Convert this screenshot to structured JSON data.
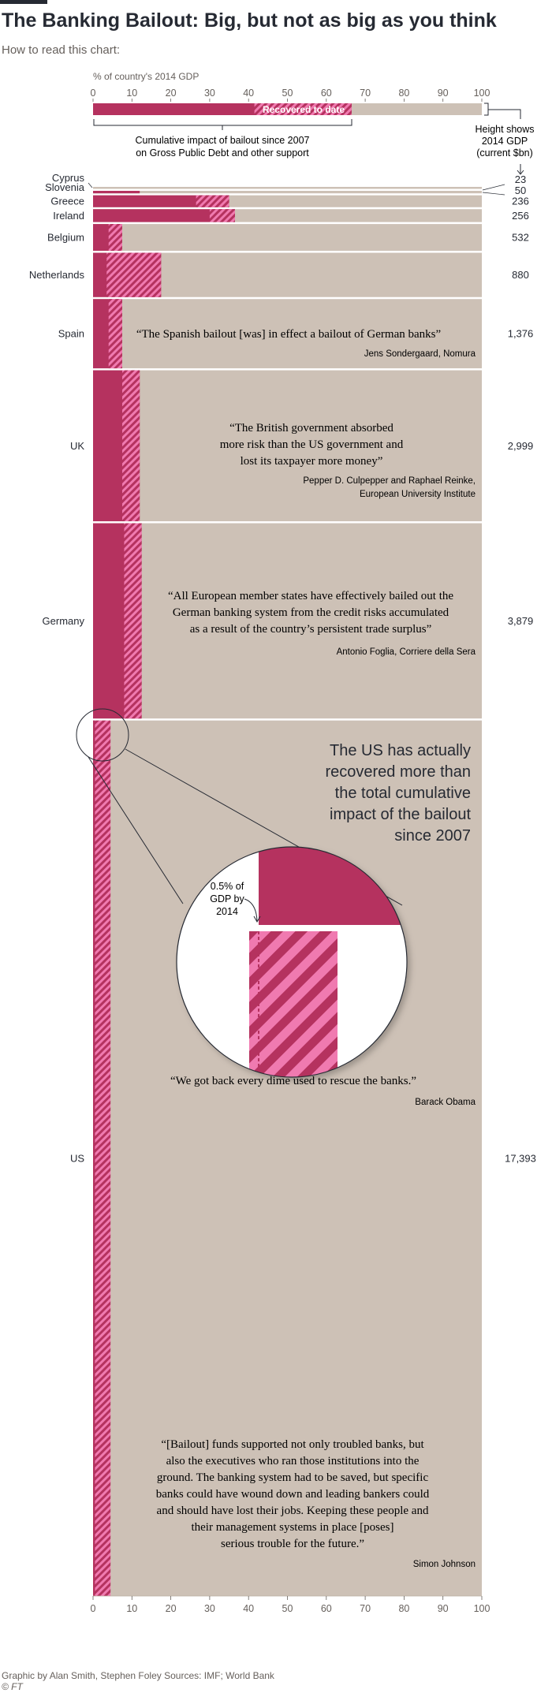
{
  "header": {
    "title": "The Banking Bailout: Big, but not as big as you think",
    "subtitle": "How to read this chart:"
  },
  "key": {
    "axis_title": "% of country's 2014 GDP",
    "recovered_label": "Recovered to date",
    "impact_label_line1": "Cumulative impact of bailout since 2007",
    "impact_label_line2": "on Gross Public Debt and other support",
    "height_label_line1": "Height shows",
    "height_label_line2": "2014 GDP",
    "height_label_line3": "(current $bn)",
    "example_impact": 66.5,
    "example_recovered": 25
  },
  "callout": {
    "headline": [
      "The US has actually",
      "recovered more than",
      "the total cumulative",
      "impact of the bailout",
      "since 2007"
    ],
    "zoom_label": [
      "0.5% of",
      "GDP by",
      "2014"
    ]
  },
  "quotes": {
    "spain": {
      "text": "“The Spanish bailout [was] in effect a bailout of German banks”",
      "source": "Jens Sondergaard, Nomura"
    },
    "uk": {
      "lines": [
        "“The British government absorbed",
        "more risk than the US government and",
        "lost its taxpayer more money”"
      ],
      "source_lines": [
        "Pepper D. Culpepper and Raphael Reinke,",
        "European University Institute"
      ]
    },
    "germany": {
      "lines": [
        "“All European member states have effectively bailed out the",
        "German banking system from the credit risks accumulated",
        "as a result of the country’s persistent trade surplus”"
      ],
      "source": "Antonio Foglia, Corriere della Sera"
    },
    "us1": {
      "text": "“We got back every dime used to rescue the banks.”",
      "source": "Barack Obama"
    },
    "us2": {
      "lines": [
        "“[Bailout] funds supported not only troubled banks, but",
        "also the executives who ran those institutions into the",
        "ground.  The banking system had to be saved, but specific",
        "banks could have wound down and leading bankers could",
        "and should have lost their jobs. Keeping these people and",
        "their management systems in place [poses]",
        "serious trouble for the future.”"
      ],
      "source": "Simon Johnson"
    }
  },
  "footer": {
    "credits": "Graphic by Alan Smith, Stephen Foley   Sources: IMF; World Bank",
    "publisher": "© FT"
  },
  "colors": {
    "impact": "#b5325f",
    "recovered": "#f07ab0",
    "background": "#cdc1b6"
  },
  "chart_data": {
    "type": "bar",
    "title": "The Banking Bailout: Big, but not as big as you think",
    "xlabel": "% of country's 2014 GDP",
    "xlim": [
      0,
      100
    ],
    "xticks": [
      0,
      10,
      20,
      30,
      40,
      50,
      60,
      70,
      80,
      90,
      100
    ],
    "bar_height_encodes": "2014 GDP (current $bn)",
    "series": [
      {
        "name": "Cumulative impact of bailout since 2007 on Gross Public Debt and other support"
      },
      {
        "name": "Recovered to date"
      }
    ],
    "countries": [
      {
        "name": "Cyprus",
        "gdp": "23",
        "gdp_value": 23,
        "impact": 0,
        "recovered": 0
      },
      {
        "name": "Slovenia",
        "gdp": "50",
        "gdp_value": 50,
        "impact": 12,
        "recovered": 0
      },
      {
        "name": "Greece",
        "gdp": "236",
        "gdp_value": 236,
        "impact": 35,
        "recovered": 8.5
      },
      {
        "name": "Ireland",
        "gdp": "256",
        "gdp_value": 256,
        "impact": 36.5,
        "recovered": 6.5
      },
      {
        "name": "Belgium",
        "gdp": "532",
        "gdp_value": 532,
        "impact": 7.5,
        "recovered": 3.5
      },
      {
        "name": "Netherlands",
        "gdp": "880",
        "gdp_value": 880,
        "impact": 17.5,
        "recovered": 14
      },
      {
        "name": "Spain",
        "gdp": "1,376",
        "gdp_value": 1376,
        "impact": 7.5,
        "recovered": 3.5
      },
      {
        "name": "UK",
        "gdp": "2,999",
        "gdp_value": 2999,
        "impact": 12,
        "recovered": 4.5
      },
      {
        "name": "Germany",
        "gdp": "3,879",
        "gdp_value": 3879,
        "impact": 12.5,
        "recovered": 4.5
      },
      {
        "name": "US",
        "gdp": "17,393",
        "gdp_value": 17393,
        "impact": 0.5,
        "recovered": 4.5
      }
    ]
  }
}
